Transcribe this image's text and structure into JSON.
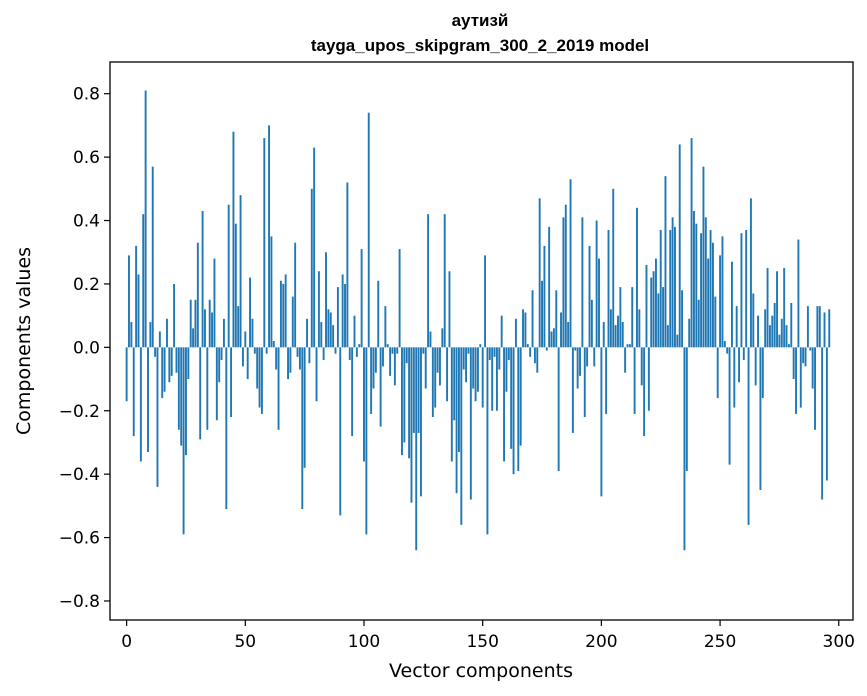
{
  "chart_data": {
    "type": "bar",
    "title": "аутизй",
    "subtitle": "tayga_upos_skipgram_300_2_2019 model",
    "xlabel": "Vector components",
    "ylabel": "Components values",
    "xlim": [
      -7.0,
      306.0
    ],
    "ylim": [
      -0.86,
      0.9
    ],
    "xticks": [
      0,
      50,
      100,
      150,
      200,
      250,
      300
    ],
    "yticks": [
      -0.8,
      -0.6,
      -0.4,
      -0.2,
      0.0,
      0.2,
      0.4,
      0.6,
      0.8
    ],
    "ytick_labels": [
      "−0.8",
      "−0.6",
      "−0.4",
      "−0.2",
      "0.0",
      "0.2",
      "0.4",
      "0.6",
      "0.8"
    ],
    "bar_color": "#1f77b4",
    "values": [
      -0.17,
      0.29,
      0.08,
      -0.28,
      0.32,
      0.23,
      -0.36,
      0.42,
      0.81,
      -0.33,
      0.08,
      0.57,
      -0.03,
      -0.44,
      0.05,
      -0.16,
      -0.14,
      0.09,
      -0.11,
      -0.09,
      0.2,
      -0.08,
      -0.26,
      -0.31,
      -0.59,
      -0.34,
      -0.1,
      0.15,
      0.06,
      0.15,
      0.33,
      -0.29,
      0.43,
      0.12,
      -0.26,
      0.15,
      0.11,
      0.28,
      -0.23,
      -0.11,
      -0.04,
      0.09,
      -0.51,
      0.45,
      -0.22,
      0.68,
      0.39,
      0.13,
      0.48,
      -0.06,
      0.05,
      -0.1,
      0.22,
      0.09,
      -0.02,
      -0.13,
      -0.19,
      -0.21,
      0.66,
      -0.02,
      0.7,
      0.35,
      0.02,
      -0.07,
      -0.26,
      0.21,
      0.2,
      0.23,
      -0.1,
      -0.08,
      0.16,
      0.33,
      -0.03,
      -0.07,
      -0.51,
      -0.38,
      0.09,
      -0.05,
      0.5,
      0.63,
      -0.17,
      0.24,
      0.08,
      -0.04,
      0.3,
      0.12,
      0.11,
      0.07,
      -0.02,
      0.19,
      -0.53,
      0.23,
      0.2,
      0.52,
      -0.04,
      -0.28,
      0.1,
      -0.03,
      0.01,
      0.31,
      -0.36,
      -0.59,
      0.74,
      -0.21,
      -0.13,
      -0.08,
      0.21,
      -0.25,
      -0.06,
      0.13,
      0.01,
      -0.09,
      -0.02,
      -0.12,
      -0.02,
      0.31,
      -0.34,
      -0.3,
      -0.05,
      -0.35,
      -0.49,
      -0.27,
      -0.64,
      -0.27,
      -0.47,
      -0.02,
      -0.13,
      0.42,
      0.05,
      -0.22,
      -0.19,
      -0.08,
      -0.12,
      0.06,
      0.42,
      -0.17,
      0.24,
      -0.36,
      -0.23,
      -0.46,
      -0.33,
      -0.56,
      -0.07,
      -0.11,
      -0.02,
      -0.48,
      -0.13,
      -0.17,
      -0.14,
      0.01,
      -0.19,
      0.29,
      -0.59,
      -0.04,
      -0.2,
      -0.03,
      -0.2,
      -0.07,
      0.1,
      -0.36,
      -0.14,
      -0.04,
      -0.32,
      -0.4,
      0.09,
      -0.39,
      -0.31,
      0.12,
      0.11,
      0.01,
      -0.03,
      0.18,
      -0.05,
      -0.08,
      0.47,
      0.21,
      0.32,
      -0.01,
      0.38,
      0.05,
      0.06,
      0.18,
      -0.39,
      0.11,
      0.41,
      0.45,
      0.08,
      0.53,
      -0.27,
      -0.01,
      -0.13,
      -0.09,
      0.41,
      -0.22,
      -0.06,
      0.32,
      0.15,
      -0.06,
      0.4,
      0.28,
      -0.47,
      0.08,
      -0.21,
      0.37,
      0.12,
      0.5,
      0.07,
      0.1,
      0.19,
      0.08,
      -0.08,
      0.01,
      0.01,
      0.19,
      -0.21,
      0.44,
      0.12,
      -0.12,
      -0.28,
      0.26,
      -0.2,
      0.22,
      0.24,
      0.28,
      0.17,
      0.37,
      0.19,
      0.54,
      0.07,
      0.37,
      0.41,
      0.38,
      0.04,
      0.64,
      0.18,
      -0.64,
      -0.39,
      0.09,
      0.66,
      0.43,
      0.39,
      0.15,
      0.36,
      0.57,
      0.41,
      0.28,
      0.37,
      0.33,
      0.16,
      -0.16,
      0.29,
      0.35,
      0.02,
      -0.02,
      -0.37,
      0.27,
      -0.19,
      0.13,
      -0.11,
      0.36,
      -0.04,
      0.37,
      -0.56,
      0.47,
      0.17,
      -0.12,
      0.1,
      -0.45,
      -0.16,
      0.12,
      0.25,
      0.07,
      0.1,
      0.14,
      0.24,
      0.04,
      0.09,
      0.25,
      0.07,
      0.01,
      0.14,
      -0.1,
      -0.21,
      0.34,
      -0.19,
      -0.05,
      -0.06,
      0.13,
      -0.01,
      -0.13,
      -0.26,
      0.13,
      0.13,
      -0.48,
      0.11,
      -0.42,
      0.12
    ]
  }
}
